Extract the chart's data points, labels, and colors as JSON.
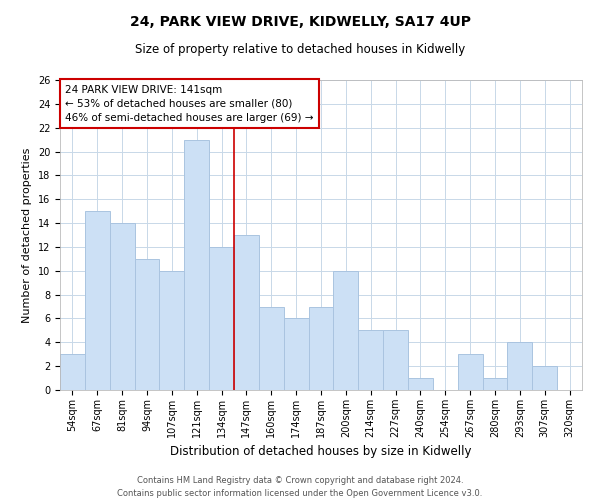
{
  "title": "24, PARK VIEW DRIVE, KIDWELLY, SA17 4UP",
  "subtitle": "Size of property relative to detached houses in Kidwelly",
  "xlabel": "Distribution of detached houses by size in Kidwelly",
  "ylabel": "Number of detached properties",
  "categories": [
    "54sqm",
    "67sqm",
    "81sqm",
    "94sqm",
    "107sqm",
    "121sqm",
    "134sqm",
    "147sqm",
    "160sqm",
    "174sqm",
    "187sqm",
    "200sqm",
    "214sqm",
    "227sqm",
    "240sqm",
    "254sqm",
    "267sqm",
    "280sqm",
    "293sqm",
    "307sqm",
    "320sqm"
  ],
  "values": [
    3,
    15,
    14,
    11,
    10,
    21,
    12,
    13,
    7,
    6,
    7,
    10,
    5,
    5,
    1,
    0,
    3,
    1,
    4,
    2,
    0
  ],
  "bar_color": "#cce0f5",
  "bar_edge_color": "#aac4e0",
  "reference_line_color": "#cc0000",
  "ylim": [
    0,
    26
  ],
  "yticks": [
    0,
    2,
    4,
    6,
    8,
    10,
    12,
    14,
    16,
    18,
    20,
    22,
    24,
    26
  ],
  "annotation_title": "24 PARK VIEW DRIVE: 141sqm",
  "annotation_line1": "← 53% of detached houses are smaller (80)",
  "annotation_line2": "46% of semi-detached houses are larger (69) →",
  "annotation_box_color": "#ffffff",
  "annotation_box_edge_color": "#cc0000",
  "footer_line1": "Contains HM Land Registry data © Crown copyright and database right 2024.",
  "footer_line2": "Contains public sector information licensed under the Open Government Licence v3.0.",
  "background_color": "#ffffff",
  "grid_color": "#c8d8e8",
  "title_fontsize": 10,
  "subtitle_fontsize": 8.5,
  "ylabel_fontsize": 8,
  "xlabel_fontsize": 8.5,
  "tick_fontsize": 7,
  "annotation_fontsize": 7.5,
  "footer_fontsize": 6
}
